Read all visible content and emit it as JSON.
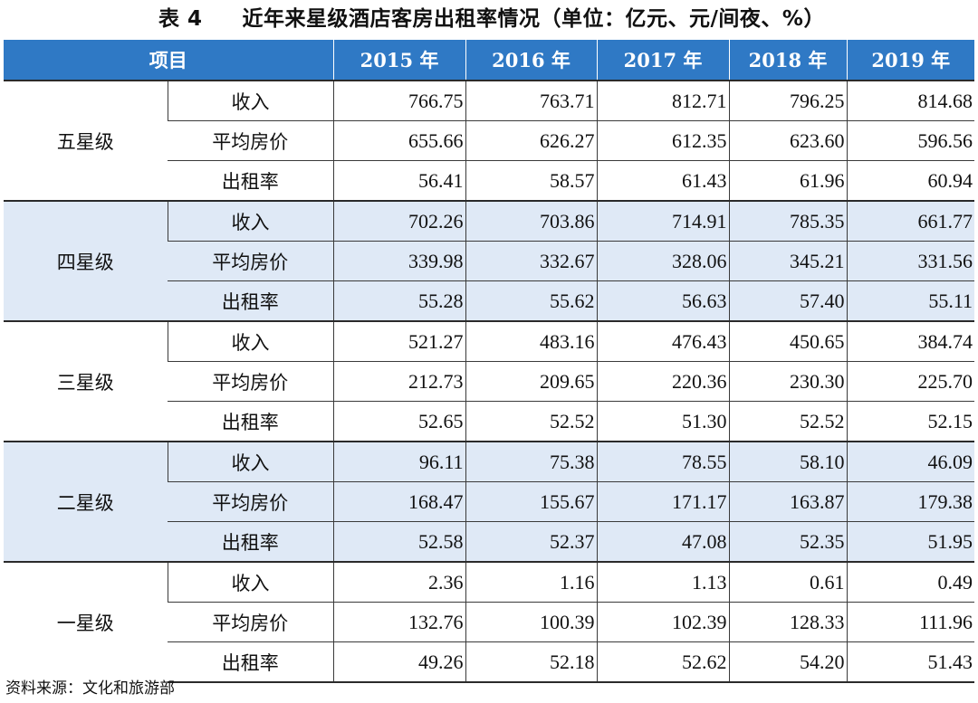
{
  "title": {
    "label": "表 4",
    "text": "近年来星级酒店客房出租率情况（单位：亿元、元/间夜、%）"
  },
  "header": {
    "item": "项目",
    "years": [
      "2015 年",
      "2016 年",
      "2017 年",
      "2018 年",
      "2019 年"
    ]
  },
  "groups": [
    {
      "name": "五星级",
      "rows": [
        {
          "metric": "收入",
          "values": [
            "766.75",
            "763.71",
            "812.71",
            "796.25",
            "814.68"
          ]
        },
        {
          "metric": "平均房价",
          "values": [
            "655.66",
            "626.27",
            "612.35",
            "623.60",
            "596.56"
          ]
        },
        {
          "metric": "出租率",
          "values": [
            "56.41",
            "58.57",
            "61.43",
            "61.96",
            "60.94"
          ]
        }
      ]
    },
    {
      "name": "四星级",
      "rows": [
        {
          "metric": "收入",
          "values": [
            "702.26",
            "703.86",
            "714.91",
            "785.35",
            "661.77"
          ]
        },
        {
          "metric": "平均房价",
          "values": [
            "339.98",
            "332.67",
            "328.06",
            "345.21",
            "331.56"
          ]
        },
        {
          "metric": "出租率",
          "values": [
            "55.28",
            "55.62",
            "56.63",
            "57.40",
            "55.11"
          ]
        }
      ]
    },
    {
      "name": "三星级",
      "rows": [
        {
          "metric": "收入",
          "values": [
            "521.27",
            "483.16",
            "476.43",
            "450.65",
            "384.74"
          ]
        },
        {
          "metric": "平均房价",
          "values": [
            "212.73",
            "209.65",
            "220.36",
            "230.30",
            "225.70"
          ]
        },
        {
          "metric": "出租率",
          "values": [
            "52.65",
            "52.52",
            "51.30",
            "52.52",
            "52.15"
          ]
        }
      ]
    },
    {
      "name": "二星级",
      "rows": [
        {
          "metric": "收入",
          "values": [
            "96.11",
            "75.38",
            "78.55",
            "58.10",
            "46.09"
          ]
        },
        {
          "metric": "平均房价",
          "values": [
            "168.47",
            "155.67",
            "171.17",
            "163.87",
            "179.38"
          ]
        },
        {
          "metric": "出租率",
          "values": [
            "52.58",
            "52.37",
            "47.08",
            "52.35",
            "51.95"
          ]
        }
      ]
    },
    {
      "name": "一星级",
      "rows": [
        {
          "metric": "收入",
          "values": [
            "2.36",
            "1.16",
            "1.13",
            "0.61",
            "0.49"
          ]
        },
        {
          "metric": "平均房价",
          "values": [
            "132.76",
            "100.39",
            "102.39",
            "128.33",
            "111.96"
          ]
        },
        {
          "metric": "出租率",
          "values": [
            "49.26",
            "52.18",
            "52.62",
            "54.20",
            "51.43"
          ]
        }
      ]
    }
  ],
  "source": "资料来源：文化和旅游部",
  "colors": {
    "header_bg": "#2f79c5",
    "shade_bg": "#dfe9f6"
  }
}
